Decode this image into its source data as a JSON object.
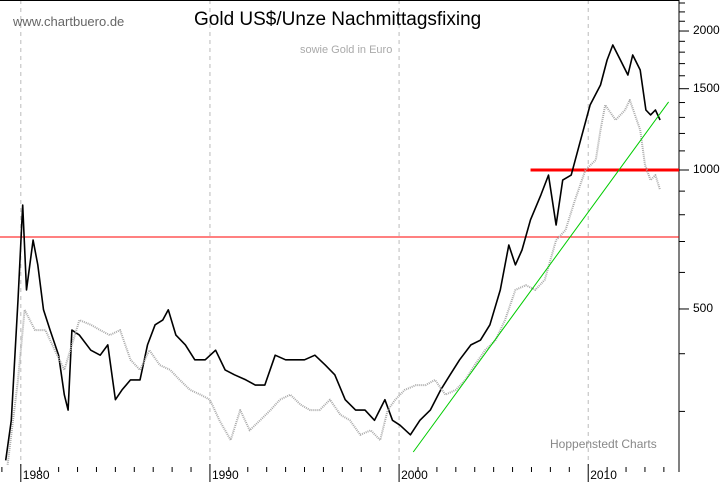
{
  "chart_data": {
    "type": "line",
    "title": "Gold US$/Unze Nachmittagsfixing",
    "subtitle": "sowie Gold in Euro",
    "watermark": "www.chartbuero.de",
    "credit": "Hoppenstedt Charts",
    "y_scale": "log",
    "ylim": [
      230,
      2335
    ],
    "xlim": [
      1978.9,
      2014.8
    ],
    "y_ticks": [
      500,
      1000,
      1500,
      2000
    ],
    "x_ticks": [
      1980,
      1990,
      2000,
      2010
    ],
    "grid": "vertical dashed at decades",
    "y_axis_side": "right",
    "series": [
      {
        "color": "#000000",
        "points": [
          [
            1979.2,
            235
          ],
          [
            1979.5,
            287
          ],
          [
            1979.85,
            523
          ],
          [
            1980.1,
            840
          ],
          [
            1980.3,
            550
          ],
          [
            1980.65,
            705
          ],
          [
            1980.9,
            623
          ],
          [
            1981.2,
            498
          ],
          [
            1981.55,
            450
          ],
          [
            1982.0,
            397
          ],
          [
            1982.3,
            326
          ],
          [
            1982.5,
            302
          ],
          [
            1982.7,
            450
          ],
          [
            1983.1,
            439
          ],
          [
            1983.7,
            407
          ],
          [
            1984.2,
            397
          ],
          [
            1984.6,
            418
          ],
          [
            1985.0,
            318
          ],
          [
            1985.35,
            334
          ],
          [
            1985.8,
            351
          ],
          [
            1986.3,
            351
          ],
          [
            1986.7,
            418
          ],
          [
            1987.1,
            462
          ],
          [
            1987.5,
            473
          ],
          [
            1987.8,
            498
          ],
          [
            1988.2,
            439
          ],
          [
            1988.7,
            418
          ],
          [
            1989.2,
            388
          ],
          [
            1989.75,
            388
          ],
          [
            1990.3,
            407
          ],
          [
            1990.8,
            369
          ],
          [
            1991.3,
            360
          ],
          [
            1991.9,
            351
          ],
          [
            1992.4,
            342
          ],
          [
            1992.9,
            342
          ],
          [
            1993.45,
            397
          ],
          [
            1994.0,
            388
          ],
          [
            1994.5,
            388
          ],
          [
            1995.0,
            388
          ],
          [
            1995.55,
            397
          ],
          [
            1996.1,
            378
          ],
          [
            1996.6,
            360
          ],
          [
            1997.15,
            318
          ],
          [
            1997.7,
            302
          ],
          [
            1998.2,
            302
          ],
          [
            1998.7,
            287
          ],
          [
            1999.25,
            318
          ],
          [
            1999.65,
            287
          ],
          [
            2000.05,
            280
          ],
          [
            2000.6,
            267
          ],
          [
            2001.1,
            287
          ],
          [
            2001.65,
            302
          ],
          [
            2002.2,
            334
          ],
          [
            2002.7,
            360
          ],
          [
            2003.2,
            388
          ],
          [
            2003.8,
            418
          ],
          [
            2004.3,
            428
          ],
          [
            2004.8,
            462
          ],
          [
            2005.35,
            550
          ],
          [
            2005.8,
            688
          ],
          [
            2006.15,
            623
          ],
          [
            2006.5,
            671
          ],
          [
            2006.95,
            780
          ],
          [
            2007.5,
            883
          ],
          [
            2007.9,
            975
          ],
          [
            2008.3,
            760
          ],
          [
            2008.65,
            951
          ],
          [
            2009.1,
            975
          ],
          [
            2009.6,
            1161
          ],
          [
            2010.1,
            1383
          ],
          [
            2010.65,
            1528
          ],
          [
            2011.0,
            1731
          ],
          [
            2011.3,
            1865
          ],
          [
            2011.7,
            1731
          ],
          [
            2012.1,
            1606
          ],
          [
            2012.35,
            1775
          ],
          [
            2012.75,
            1647
          ],
          [
            2013.05,
            1349
          ],
          [
            2013.3,
            1316
          ],
          [
            2013.55,
            1349
          ],
          [
            2013.8,
            1283
          ]
        ]
      },
      {
        "color": "#aaaaaa",
        "style": "dotted",
        "points": [
          [
            1979.3,
            230
          ],
          [
            1979.85,
            351
          ],
          [
            1980.2,
            498
          ],
          [
            1980.75,
            450
          ],
          [
            1981.3,
            450
          ],
          [
            1981.8,
            407
          ],
          [
            1982.3,
            369
          ],
          [
            1982.7,
            418
          ],
          [
            1983.1,
            473
          ],
          [
            1983.7,
            462
          ],
          [
            1984.2,
            450
          ],
          [
            1984.7,
            439
          ],
          [
            1985.25,
            450
          ],
          [
            1985.8,
            388
          ],
          [
            1986.3,
            369
          ],
          [
            1986.8,
            407
          ],
          [
            1987.35,
            378
          ],
          [
            1987.9,
            369
          ],
          [
            1988.4,
            351
          ],
          [
            1988.95,
            334
          ],
          [
            1989.5,
            326
          ],
          [
            1990.0,
            318
          ],
          [
            1990.5,
            287
          ],
          [
            1991.1,
            260
          ],
          [
            1991.6,
            302
          ],
          [
            1992.1,
            273
          ],
          [
            1992.65,
            287
          ],
          [
            1993.2,
            302
          ],
          [
            1993.7,
            318
          ],
          [
            1994.25,
            326
          ],
          [
            1994.8,
            310
          ],
          [
            1995.3,
            302
          ],
          [
            1995.8,
            302
          ],
          [
            1996.35,
            318
          ],
          [
            1996.9,
            295
          ],
          [
            1997.4,
            287
          ],
          [
            1997.95,
            267
          ],
          [
            1998.5,
            273
          ],
          [
            1999.0,
            260
          ],
          [
            1999.4,
            302
          ],
          [
            1999.8,
            318
          ],
          [
            2000.3,
            334
          ],
          [
            2000.9,
            342
          ],
          [
            2001.4,
            342
          ],
          [
            2001.9,
            351
          ],
          [
            2002.45,
            326
          ],
          [
            2003.0,
            334
          ],
          [
            2003.5,
            351
          ],
          [
            2004.0,
            378
          ],
          [
            2004.55,
            407
          ],
          [
            2005.1,
            428
          ],
          [
            2005.6,
            473
          ],
          [
            2006.15,
            550
          ],
          [
            2006.7,
            563
          ],
          [
            2007.2,
            550
          ],
          [
            2007.7,
            578
          ],
          [
            2008.3,
            705
          ],
          [
            2008.8,
            741
          ],
          [
            2009.3,
            861
          ],
          [
            2009.85,
            1000
          ],
          [
            2010.4,
            1051
          ],
          [
            2010.65,
            1221
          ],
          [
            2010.9,
            1383
          ],
          [
            2011.45,
            1283
          ],
          [
            2011.95,
            1349
          ],
          [
            2012.2,
            1418
          ],
          [
            2012.75,
            1221
          ],
          [
            2013.0,
            1025
          ],
          [
            2013.3,
            951
          ],
          [
            2013.55,
            975
          ],
          [
            2013.8,
            905
          ]
        ]
      }
    ],
    "annotations": [
      {
        "type": "trendline",
        "color": "#00cc00",
        "from": [
          2000.75,
          245
        ],
        "to": [
          2014.25,
          1404
        ]
      },
      {
        "type": "hline",
        "color": "#ff0000",
        "value": 1000,
        "from_x": 2006.95,
        "thick": true
      },
      {
        "type": "hline",
        "color": "#ff0000",
        "value": 716
      }
    ]
  }
}
